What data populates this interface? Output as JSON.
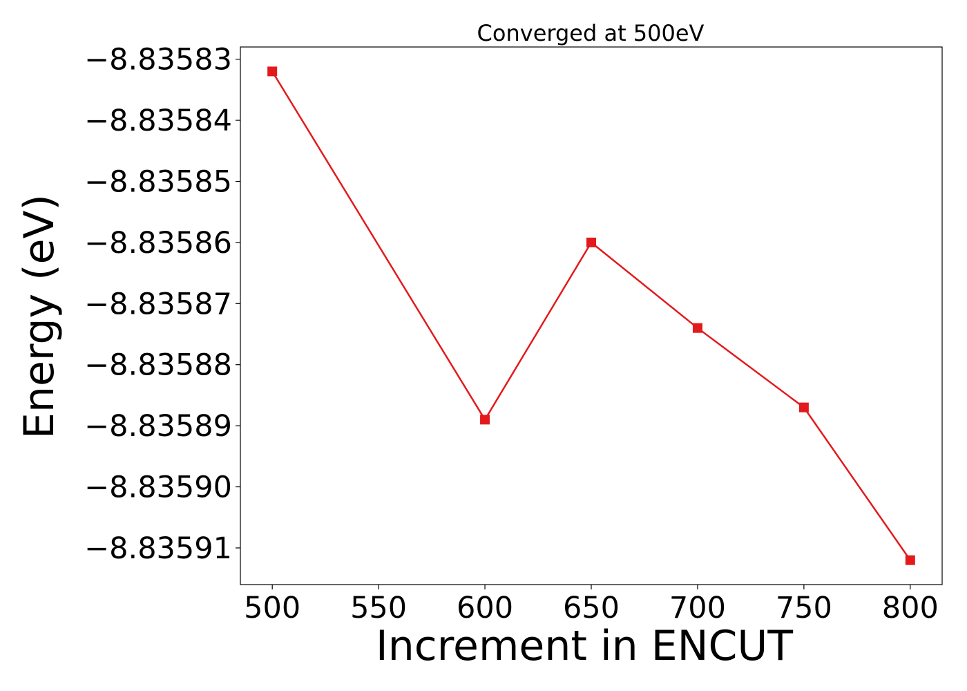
{
  "chart_data": {
    "type": "line",
    "title": "Converged at 500eV",
    "xlabel": "Increment in ENCUT",
    "ylabel": "Energy (eV)",
    "x": [
      500,
      600,
      650,
      700,
      750,
      800
    ],
    "series": [
      {
        "values": [
          -8.835832,
          -8.835889,
          -8.83586,
          -8.835874,
          -8.835887,
          -8.835912
        ],
        "color": "#e31a1c",
        "marker": "square"
      }
    ],
    "xticks": [
      500,
      550,
      600,
      650,
      700,
      750,
      800
    ],
    "xtick_labels": [
      "500",
      "550",
      "600",
      "650",
      "700",
      "750",
      "800"
    ],
    "yticks": [
      -8.83583,
      -8.83584,
      -8.83585,
      -8.83586,
      -8.83587,
      -8.83588,
      -8.83589,
      -8.8359,
      -8.83591
    ],
    "ytick_labels": [
      "−8.83583",
      "−8.83584",
      "−8.83585",
      "−8.83586",
      "−8.83587",
      "−8.83588",
      "−8.83589",
      "−8.83590",
      "−8.83591"
    ],
    "xlim": [
      485,
      815
    ],
    "ylim": [
      -8.835916,
      -8.835828
    ],
    "grid": false,
    "legend": "none"
  }
}
